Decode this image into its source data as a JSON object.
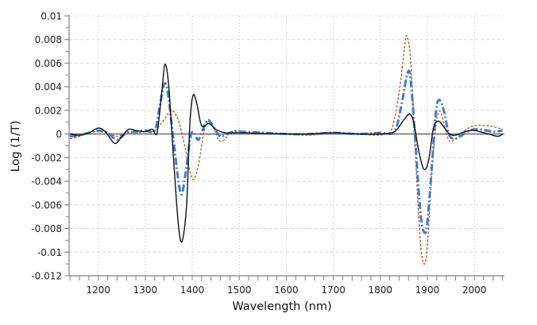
{
  "chart_data": {
    "type": "line",
    "title": "",
    "xlabel": "Wavelength (nm)",
    "ylabel": "Log (1/T)",
    "xlim": [
      1138,
      2064
    ],
    "ylim": [
      -0.012,
      0.01
    ],
    "x_ticks": [
      1200,
      1300,
      1400,
      1500,
      1600,
      1700,
      1800,
      1900,
      2000
    ],
    "x_tick_labels": [
      "1200",
      "1300",
      "1400",
      "1500",
      "1600",
      "1700",
      "1800",
      "1900",
      "2000"
    ],
    "y_ticks": [
      0.01,
      0.008,
      0.006,
      0.004,
      0.002,
      0,
      -0.002,
      -0.004,
      -0.006,
      -0.008,
      -0.01,
      -0.012
    ],
    "y_tick_labels": [
      "0.01",
      "0.008",
      "0.006",
      "0.004",
      "0.002",
      "0",
      "-0.002",
      "-0.004",
      "-0.006",
      "-0.008",
      "-0.01",
      "-0.012"
    ],
    "grid": true,
    "legend": null,
    "zero_line": true,
    "series": [
      {
        "name": "series-1",
        "color": "#c0501e",
        "style": "dashed",
        "points": [
          [
            1140,
            -0.0004
          ],
          [
            1160,
            -0.0002
          ],
          [
            1180,
            0.0001
          ],
          [
            1200,
            0.0002
          ],
          [
            1220,
            0.0001
          ],
          [
            1240,
            -0.0002
          ],
          [
            1260,
            0.0001
          ],
          [
            1280,
            0.0001
          ],
          [
            1300,
            0.0002
          ],
          [
            1320,
            0.0003
          ],
          [
            1340,
            0.0012
          ],
          [
            1355,
            0.002
          ],
          [
            1370,
            0.0012
          ],
          [
            1385,
            -0.0012
          ],
          [
            1400,
            -0.0038
          ],
          [
            1412,
            -0.0028
          ],
          [
            1425,
            0.0002
          ],
          [
            1435,
            0.0012
          ],
          [
            1445,
            0.0006
          ],
          [
            1455,
            -0.0004
          ],
          [
            1465,
            -0.0006
          ],
          [
            1480,
            0.0001
          ],
          [
            1495,
            0.0003
          ],
          [
            1520,
            0.0001
          ],
          [
            1600,
            0.0
          ],
          [
            1650,
            -0.0001
          ],
          [
            1700,
            0.0001
          ],
          [
            1750,
            0.0
          ],
          [
            1790,
            -0.0001
          ],
          [
            1810,
            0.0
          ],
          [
            1825,
            0.0005
          ],
          [
            1840,
            0.0035
          ],
          [
            1853,
            0.0078
          ],
          [
            1858,
            0.0081
          ],
          [
            1865,
            0.006
          ],
          [
            1875,
            -0.002
          ],
          [
            1885,
            -0.009
          ],
          [
            1893,
            -0.011
          ],
          [
            1900,
            -0.0095
          ],
          [
            1910,
            -0.003
          ],
          [
            1920,
            0.0012
          ],
          [
            1928,
            0.0019
          ],
          [
            1937,
            0.0006
          ],
          [
            1947,
            -0.0006
          ],
          [
            1960,
            -0.0004
          ],
          [
            1980,
            0.0003
          ],
          [
            2000,
            0.0007
          ],
          [
            2030,
            0.0007
          ],
          [
            2060,
            0.0004
          ]
        ]
      },
      {
        "name": "series-2",
        "color": "#3f7ec7",
        "style": "dash-dot",
        "points": [
          [
            1140,
            -0.0002
          ],
          [
            1160,
            -0.0001
          ],
          [
            1180,
            0.0001
          ],
          [
            1200,
            0.0003
          ],
          [
            1220,
            0.0001
          ],
          [
            1240,
            -0.0005
          ],
          [
            1260,
            0.0001
          ],
          [
            1280,
            0.0002
          ],
          [
            1300,
            0.0003
          ],
          [
            1320,
            0.0003
          ],
          [
            1330,
            0.0022
          ],
          [
            1340,
            0.0042
          ],
          [
            1348,
            0.0035
          ],
          [
            1360,
            -0.0005
          ],
          [
            1375,
            -0.005
          ],
          [
            1385,
            -0.0035
          ],
          [
            1395,
            -0.0005
          ],
          [
            1402,
            0.0002
          ],
          [
            1412,
            -0.0005
          ],
          [
            1420,
            0.0001
          ],
          [
            1432,
            0.0012
          ],
          [
            1445,
            0.0006
          ],
          [
            1460,
            -0.0002
          ],
          [
            1480,
            0.0001
          ],
          [
            1500,
            0.0002
          ],
          [
            1600,
            0.0
          ],
          [
            1650,
            0.0
          ],
          [
            1700,
            0.0001
          ],
          [
            1750,
            0.0
          ],
          [
            1800,
            0.0001
          ],
          [
            1830,
            0.0002
          ],
          [
            1845,
            0.0025
          ],
          [
            1858,
            0.0052
          ],
          [
            1865,
            0.0044
          ],
          [
            1875,
            -0.001
          ],
          [
            1885,
            -0.0065
          ],
          [
            1893,
            -0.0083
          ],
          [
            1900,
            -0.0075
          ],
          [
            1910,
            -0.0025
          ],
          [
            1918,
            0.0018
          ],
          [
            1925,
            0.0029
          ],
          [
            1935,
            0.002
          ],
          [
            1945,
            0.0001
          ],
          [
            1955,
            -0.0004
          ],
          [
            1970,
            -0.0002
          ],
          [
            1990,
            0.0003
          ],
          [
            2010,
            0.0004
          ],
          [
            2040,
            0.0002
          ],
          [
            2060,
            0.0003
          ]
        ]
      },
      {
        "name": "series-3",
        "color": "#111111",
        "style": "solid",
        "points": [
          [
            1140,
            0.0
          ],
          [
            1160,
            -0.0001
          ],
          [
            1180,
            0.0001
          ],
          [
            1200,
            0.0005
          ],
          [
            1215,
            0.0002
          ],
          [
            1235,
            -0.0008
          ],
          [
            1250,
            -0.0002
          ],
          [
            1265,
            0.0004
          ],
          [
            1280,
            0.0003
          ],
          [
            1300,
            0.0002
          ],
          [
            1315,
            0.0004
          ],
          [
            1325,
            0.0001
          ],
          [
            1335,
            0.0035
          ],
          [
            1342,
            0.0059
          ],
          [
            1350,
            0.004
          ],
          [
            1360,
            -0.002
          ],
          [
            1370,
            -0.0075
          ],
          [
            1378,
            -0.0091
          ],
          [
            1388,
            -0.006
          ],
          [
            1395,
            0.001
          ],
          [
            1402,
            0.0033
          ],
          [
            1410,
            0.0025
          ],
          [
            1420,
            0.0007
          ],
          [
            1435,
            0.0009
          ],
          [
            1450,
            0.0004
          ],
          [
            1470,
            0.0001
          ],
          [
            1500,
            0.0001
          ],
          [
            1600,
            0.0
          ],
          [
            1650,
            0.0
          ],
          [
            1700,
            0.0001
          ],
          [
            1750,
            0.0
          ],
          [
            1800,
            0.0
          ],
          [
            1830,
            0.0002
          ],
          [
            1850,
            0.0012
          ],
          [
            1863,
            0.0017
          ],
          [
            1872,
            0.0008
          ],
          [
            1882,
            -0.0015
          ],
          [
            1893,
            -0.003
          ],
          [
            1903,
            -0.0022
          ],
          [
            1913,
            0.0005
          ],
          [
            1923,
            0.0011
          ],
          [
            1935,
            0.0006
          ],
          [
            1947,
            0.0
          ],
          [
            1960,
            -0.0001
          ],
          [
            1980,
            0.0002
          ],
          [
            2000,
            0.0003
          ],
          [
            2030,
            0.0
          ],
          [
            2050,
            -0.0002
          ],
          [
            2060,
            0.0
          ]
        ]
      }
    ]
  },
  "plot": {
    "background": "#ffffff",
    "grid_color": "#d8d8d8",
    "axis_color": "#808080",
    "zero_line_color": "#8a8a8a"
  }
}
